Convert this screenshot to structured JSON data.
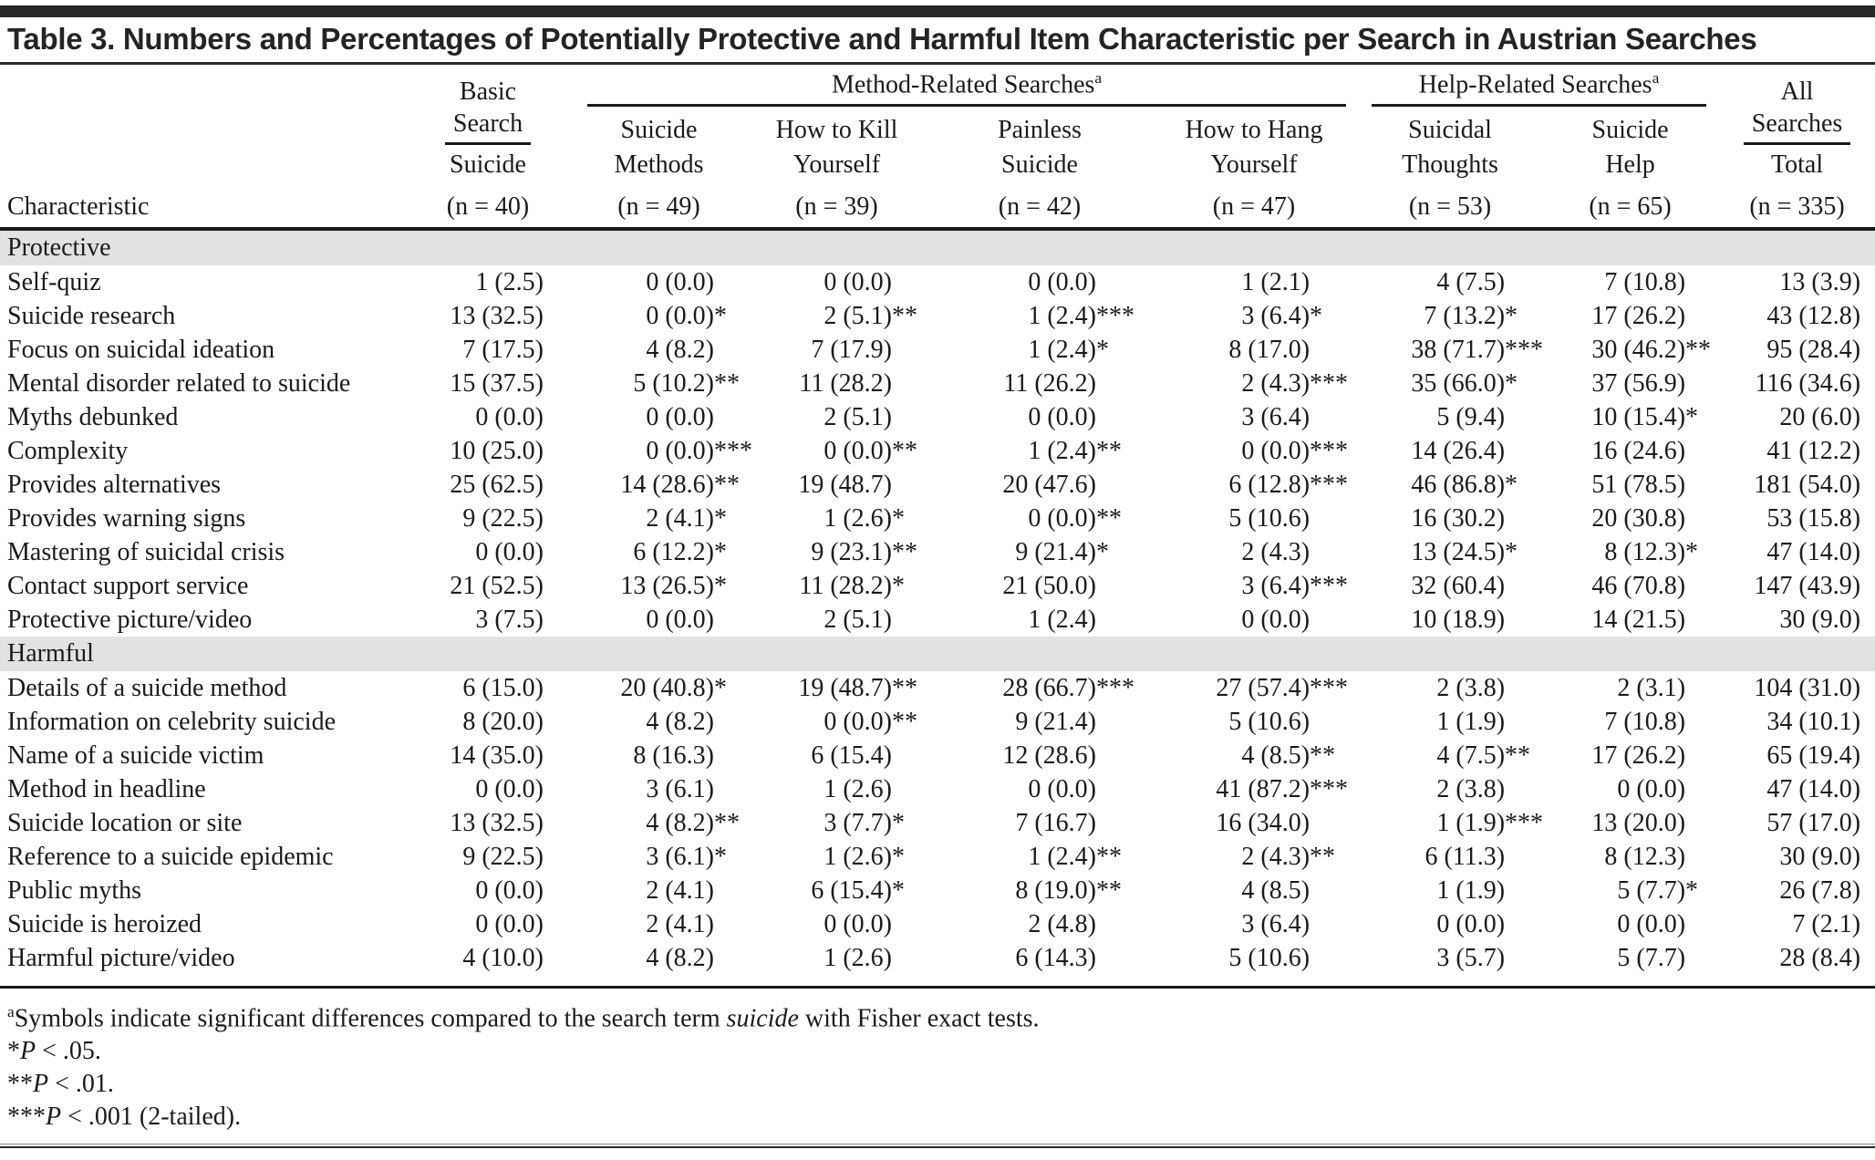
{
  "title": "Table 3. Numbers and Percentages of Potentially Protective and Harmful Item Characteristic per Search in Austrian Searches",
  "header": {
    "characteristic": "Characteristic",
    "groups": [
      {
        "line1": "Basic",
        "line2": "Search"
      },
      {
        "label": "Method-Related Searches",
        "sup": "a"
      },
      {
        "label": "Help-Related Searches",
        "sup": "a"
      },
      {
        "line1": "All",
        "line2": "Searches"
      }
    ],
    "cols": [
      {
        "sub1": "",
        "sub2": "Suicide",
        "n": "(n = 40)"
      },
      {
        "sub1": "Suicide",
        "sub2": "Methods",
        "n": "(n = 49)"
      },
      {
        "sub1": "How to Kill",
        "sub2": "Yourself",
        "n": "(n = 39)"
      },
      {
        "sub1": "Painless",
        "sub2": "Suicide",
        "n": "(n = 42)"
      },
      {
        "sub1": "How to Hang",
        "sub2": "Yourself",
        "n": "(n = 47)"
      },
      {
        "sub1": "Suicidal",
        "sub2": "Thoughts",
        "n": "(n = 53)"
      },
      {
        "sub1": "Suicide",
        "sub2": "Help",
        "n": "(n = 65)"
      },
      {
        "sub1": "",
        "sub2": "Total",
        "n": "(n = 335)"
      }
    ]
  },
  "sections": [
    {
      "label": "Protective",
      "rows": [
        {
          "label": "Self-quiz",
          "cells": [
            "1 (2.5)",
            "0 (0.0)",
            "0 (0.0)",
            "0 (0.0)",
            "1 (2.1)",
            "4 (7.5)",
            "7 (10.8)",
            "13 (3.9)"
          ]
        },
        {
          "label": "Suicide research",
          "cells": [
            "13 (32.5)",
            "0 (0.0)*",
            "2 (5.1)**",
            "1 (2.4)***",
            "3 (6.4)*",
            "7 (13.2)*",
            "17 (26.2)",
            "43 (12.8)"
          ]
        },
        {
          "label": "Focus on suicidal ideation",
          "cells": [
            "7 (17.5)",
            "4 (8.2)",
            "7 (17.9)",
            "1 (2.4)*",
            "8 (17.0)",
            "38 (71.7)***",
            "30 (46.2)**",
            "95 (28.4)"
          ]
        },
        {
          "label": "Mental disorder related to suicide",
          "cells": [
            "15 (37.5)",
            "5 (10.2)**",
            "11 (28.2)",
            "11 (26.2)",
            "2 (4.3)***",
            "35 (66.0)*",
            "37 (56.9)",
            "116 (34.6)"
          ]
        },
        {
          "label": "Myths debunked",
          "cells": [
            "0 (0.0)",
            "0 (0.0)",
            "2 (5.1)",
            "0 (0.0)",
            "3 (6.4)",
            "5 (9.4)",
            "10 (15.4)*",
            "20 (6.0)"
          ]
        },
        {
          "label": "Complexity",
          "cells": [
            "10 (25.0)",
            "0 (0.0)***",
            "0 (0.0)**",
            "1 (2.4)**",
            "0 (0.0)***",
            "14 (26.4)",
            "16 (24.6)",
            "41 (12.2)"
          ]
        },
        {
          "label": "Provides alternatives",
          "cells": [
            "25 (62.5)",
            "14 (28.6)**",
            "19 (48.7)",
            "20 (47.6)",
            "6 (12.8)***",
            "46 (86.8)*",
            "51 (78.5)",
            "181 (54.0)"
          ]
        },
        {
          "label": "Provides warning signs",
          "cells": [
            "9 (22.5)",
            "2 (4.1)*",
            "1 (2.6)*",
            "0 (0.0)**",
            "5 (10.6)",
            "16 (30.2)",
            "20 (30.8)",
            "53 (15.8)"
          ]
        },
        {
          "label": "Mastering of suicidal crisis",
          "cells": [
            "0 (0.0)",
            "6 (12.2)*",
            "9 (23.1)**",
            "9 (21.4)*",
            "2 (4.3)",
            "13 (24.5)*",
            "8 (12.3)*",
            "47 (14.0)"
          ]
        },
        {
          "label": "Contact support service",
          "cells": [
            "21 (52.5)",
            "13 (26.5)*",
            "11 (28.2)*",
            "21 (50.0)",
            "3 (6.4)***",
            "32 (60.4)",
            "46 (70.8)",
            "147 (43.9)"
          ]
        },
        {
          "label": "Protective picture/video",
          "cells": [
            "3 (7.5)",
            "0 (0.0)",
            "2 (5.1)",
            "1 (2.4)",
            "0 (0.0)",
            "10 (18.9)",
            "14 (21.5)",
            "30 (9.0)"
          ]
        }
      ]
    },
    {
      "label": "Harmful",
      "rows": [
        {
          "label": "Details of a suicide method",
          "cells": [
            "6 (15.0)",
            "20 (40.8)*",
            "19 (48.7)**",
            "28 (66.7)***",
            "27 (57.4)***",
            "2 (3.8)",
            "2 (3.1)",
            "104 (31.0)"
          ]
        },
        {
          "label": "Information on celebrity suicide",
          "cells": [
            "8 (20.0)",
            "4 (8.2)",
            "0 (0.0)**",
            "9 (21.4)",
            "5 (10.6)",
            "1 (1.9)",
            "7 (10.8)",
            "34 (10.1)"
          ]
        },
        {
          "label": "Name of a suicide victim",
          "cells": [
            "14 (35.0)",
            "8 (16.3)",
            "6 (15.4)",
            "12 (28.6)",
            "4 (8.5)**",
            "4 (7.5)**",
            "17 (26.2)",
            "65 (19.4)"
          ]
        },
        {
          "label": "Method in headline",
          "cells": [
            "0 (0.0)",
            "3 (6.1)",
            "1 (2.6)",
            "0 (0.0)",
            "41 (87.2)***",
            "2 (3.8)",
            "0 (0.0)",
            "47 (14.0)"
          ]
        },
        {
          "label": "Suicide location or site",
          "cells": [
            "13 (32.5)",
            "4 (8.2)**",
            "3 (7.7)*",
            "7 (16.7)",
            "16 (34.0)",
            "1 (1.9)***",
            "13 (20.0)",
            "57 (17.0)"
          ]
        },
        {
          "label": "Reference to a suicide epidemic",
          "cells": [
            "9 (22.5)",
            "3 (6.1)*",
            "1 (2.6)*",
            "1 (2.4)**",
            "2 (4.3)**",
            "6 (11.3)",
            "8 (12.3)",
            "30 (9.0)"
          ]
        },
        {
          "label": "Public myths",
          "cells": [
            "0 (0.0)",
            "2 (4.1)",
            "6 (15.4)*",
            "8 (19.0)**",
            "4 (8.5)",
            "1 (1.9)",
            "5 (7.7)*",
            "26 (7.8)"
          ]
        },
        {
          "label": "Suicide is heroized",
          "cells": [
            "0 (0.0)",
            "2 (4.1)",
            "0 (0.0)",
            "2 (4.8)",
            "3 (6.4)",
            "0 (0.0)",
            "0 (0.0)",
            "7 (2.1)"
          ]
        },
        {
          "label": "Harmful picture/video",
          "cells": [
            "4 (10.0)",
            "4 (8.2)",
            "1 (2.6)",
            "6 (14.3)",
            "5 (10.6)",
            "3 (5.7)",
            "5 (7.7)",
            "28 (8.4)"
          ]
        }
      ]
    }
  ],
  "footnotes": {
    "a_sup": "a",
    "a_pre": "Symbols indicate significant differences compared to the search term ",
    "a_term": "suicide",
    "a_post": " with Fisher exact tests.",
    "lines": [
      {
        "stars": "*",
        "p": "P",
        "rest": " < .05."
      },
      {
        "stars": "**",
        "p": "P",
        "rest": " < .01."
      },
      {
        "stars": "***",
        "p": "P",
        "rest": " < .001 (2-tailed)."
      }
    ]
  }
}
